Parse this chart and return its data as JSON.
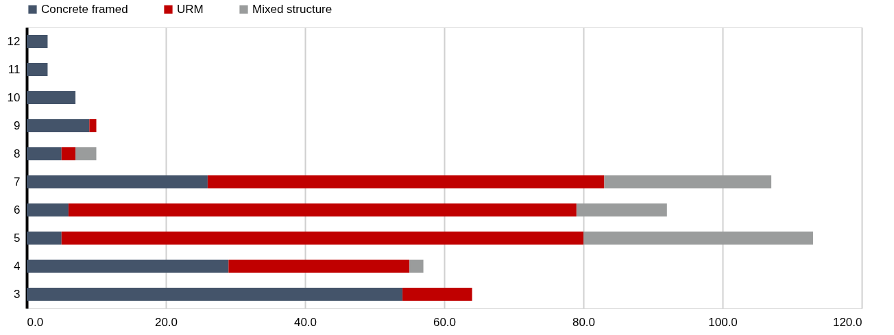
{
  "chart_data": {
    "type": "bar",
    "orientation": "horizontal",
    "stacked": true,
    "categories": [
      "12",
      "11",
      "10",
      "9",
      "8",
      "7",
      "6",
      "5",
      "4",
      "3"
    ],
    "series": [
      {
        "name": "Concrete framed",
        "color": "#44546a",
        "values": [
          3,
          3,
          7,
          9,
          5,
          26,
          6,
          5,
          29,
          54
        ]
      },
      {
        "name": "URM",
        "color": "#c00000",
        "values": [
          null,
          null,
          null,
          1,
          2,
          57,
          73,
          75,
          26,
          10
        ]
      },
      {
        "name": "Mixed structure",
        "color": "#9a9c9c",
        "values": [
          null,
          null,
          null,
          null,
          3,
          24,
          13,
          33,
          2,
          null
        ]
      }
    ],
    "xlim": [
      0,
      120
    ],
    "xticks": [
      {
        "value": 0,
        "label": "0.0"
      },
      {
        "value": 20,
        "label": "20.0"
      },
      {
        "value": 40,
        "label": "40.0"
      },
      {
        "value": 60,
        "label": "60.0"
      },
      {
        "value": 80,
        "label": "80.0"
      },
      {
        "value": 100,
        "label": "100.0"
      },
      {
        "value": 120,
        "label": "120.0"
      }
    ],
    "grid": "x",
    "legend": "top"
  }
}
